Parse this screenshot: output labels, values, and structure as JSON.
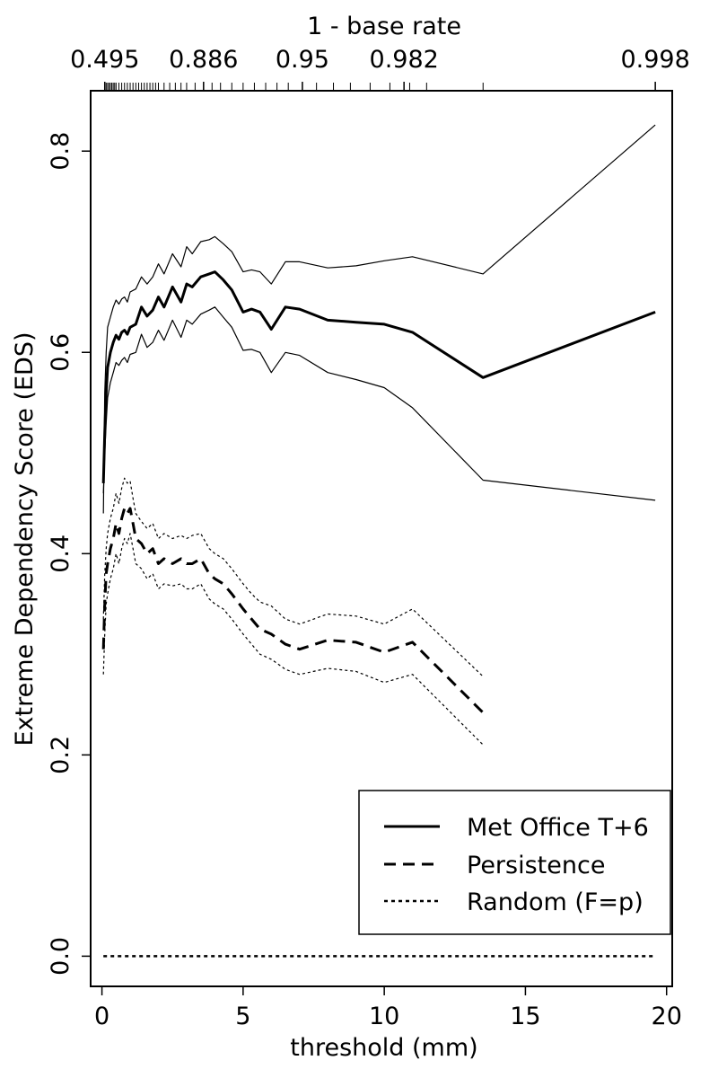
{
  "chart_data": {
    "type": "line",
    "xlabel": "threshold (mm)",
    "ylabel": "Extreme Dependency Score (EDS)",
    "top_axis_label": "1 - base rate",
    "xlim": [
      -0.4,
      20.2
    ],
    "ylim": [
      -0.03,
      0.86
    ],
    "x_ticks": [
      0,
      5,
      10,
      15,
      20
    ],
    "x_tick_labels": [
      "0",
      "5",
      "10",
      "15",
      "20"
    ],
    "y_ticks": [
      0.0,
      0.2,
      0.4,
      0.6,
      0.8
    ],
    "y_tick_labels": [
      "0.0",
      "0.2",
      "0.4",
      "0.6",
      "0.8"
    ],
    "top_ticks": [
      {
        "x": 0.1,
        "label": "0.495"
      },
      {
        "x": 3.6,
        "label": "0.886"
      },
      {
        "x": 7.1,
        "label": "0.95"
      },
      {
        "x": 10.7,
        "label": "0.982"
      },
      {
        "x": 19.6,
        "label": "0.998"
      }
    ],
    "top_minor_ticks": [
      0.1,
      0.15,
      0.2,
      0.25,
      0.3,
      0.35,
      0.4,
      0.45,
      0.5,
      0.6,
      0.7,
      0.8,
      0.9,
      1.0,
      1.1,
      1.2,
      1.3,
      1.4,
      1.5,
      1.6,
      1.7,
      1.8,
      1.9,
      2.0,
      2.2,
      2.4,
      2.6,
      2.8,
      3.0,
      3.3,
      3.6,
      3.9,
      4.2,
      4.6,
      5.0,
      5.4,
      5.8,
      6.2,
      6.6,
      7.1,
      7.6,
      8.2,
      8.8,
      9.5,
      10.2,
      10.9,
      11.5,
      13.5,
      19.6
    ],
    "series": [
      {
        "name": "Met Office T+6",
        "style": "solid",
        "x": [
          0.05,
          0.1,
          0.15,
          0.2,
          0.3,
          0.4,
          0.5,
          0.6,
          0.7,
          0.8,
          0.9,
          1.0,
          1.2,
          1.4,
          1.6,
          1.8,
          2.0,
          2.2,
          2.5,
          2.8,
          3.0,
          3.2,
          3.5,
          3.8,
          4.0,
          4.3,
          4.6,
          5.0,
          5.3,
          5.6,
          6.0,
          6.5,
          7.0,
          8.0,
          9.0,
          10.0,
          11.0,
          13.5,
          19.6
        ],
        "y": [
          0.47,
          0.52,
          0.56,
          0.585,
          0.6,
          0.61,
          0.617,
          0.613,
          0.62,
          0.622,
          0.618,
          0.625,
          0.628,
          0.645,
          0.636,
          0.642,
          0.655,
          0.645,
          0.665,
          0.65,
          0.668,
          0.665,
          0.675,
          0.678,
          0.68,
          0.672,
          0.662,
          0.64,
          0.643,
          0.64,
          0.623,
          0.645,
          0.643,
          0.632,
          0.63,
          0.628,
          0.62,
          0.575,
          0.64
        ]
      },
      {
        "name": "Met Office T+6 upper bound",
        "style": "thin",
        "x": [
          0.05,
          0.1,
          0.15,
          0.2,
          0.3,
          0.4,
          0.5,
          0.6,
          0.7,
          0.8,
          0.9,
          1.0,
          1.2,
          1.4,
          1.6,
          1.8,
          2.0,
          2.2,
          2.5,
          2.8,
          3.0,
          3.2,
          3.5,
          3.8,
          4.0,
          4.3,
          4.6,
          5.0,
          5.3,
          5.6,
          6.0,
          6.5,
          7.0,
          8.0,
          9.0,
          10.0,
          11.0,
          13.5,
          19.6
        ],
        "y": [
          0.44,
          0.56,
          0.6,
          0.625,
          0.635,
          0.645,
          0.652,
          0.648,
          0.653,
          0.655,
          0.65,
          0.66,
          0.663,
          0.675,
          0.668,
          0.675,
          0.688,
          0.678,
          0.698,
          0.685,
          0.705,
          0.698,
          0.71,
          0.712,
          0.715,
          0.708,
          0.7,
          0.68,
          0.682,
          0.68,
          0.668,
          0.69,
          0.69,
          0.684,
          0.686,
          0.691,
          0.695,
          0.678,
          0.826
        ]
      },
      {
        "name": "Met Office T+6 lower bound",
        "style": "thin",
        "x": [
          0.05,
          0.1,
          0.15,
          0.2,
          0.3,
          0.4,
          0.5,
          0.6,
          0.7,
          0.8,
          0.9,
          1.0,
          1.2,
          1.4,
          1.6,
          1.8,
          2.0,
          2.2,
          2.5,
          2.8,
          3.0,
          3.2,
          3.5,
          3.8,
          4.0,
          4.3,
          4.6,
          5.0,
          5.3,
          5.6,
          6.0,
          6.5,
          7.0,
          8.0,
          9.0,
          10.0,
          11.0,
          13.5,
          19.6
        ],
        "y": [
          0.46,
          0.5,
          0.53,
          0.555,
          0.57,
          0.58,
          0.59,
          0.587,
          0.592,
          0.595,
          0.59,
          0.598,
          0.6,
          0.618,
          0.605,
          0.61,
          0.622,
          0.612,
          0.632,
          0.615,
          0.632,
          0.628,
          0.638,
          0.642,
          0.645,
          0.635,
          0.625,
          0.602,
          0.603,
          0.6,
          0.58,
          0.6,
          0.597,
          0.58,
          0.573,
          0.565,
          0.545,
          0.473,
          0.453
        ]
      },
      {
        "name": "Persistence",
        "style": "dashed",
        "x": [
          0.05,
          0.1,
          0.15,
          0.2,
          0.3,
          0.4,
          0.5,
          0.6,
          0.7,
          0.8,
          0.9,
          1.0,
          1.1,
          1.2,
          1.4,
          1.6,
          1.8,
          2.0,
          2.2,
          2.5,
          2.8,
          3.0,
          3.2,
          3.5,
          3.8,
          4.0,
          4.3,
          4.6,
          5.0,
          5.3,
          5.6,
          6.0,
          6.5,
          7.0,
          8.0,
          9.0,
          10.0,
          11.0,
          13.5
        ],
        "y": [
          0.305,
          0.35,
          0.38,
          0.39,
          0.405,
          0.415,
          0.43,
          0.42,
          0.435,
          0.445,
          0.44,
          0.445,
          0.43,
          0.415,
          0.41,
          0.4,
          0.405,
          0.39,
          0.395,
          0.39,
          0.395,
          0.39,
          0.39,
          0.395,
          0.38,
          0.375,
          0.37,
          0.36,
          0.345,
          0.335,
          0.325,
          0.32,
          0.31,
          0.305,
          0.314,
          0.312,
          0.302,
          0.312,
          0.242
        ]
      },
      {
        "name": "Persistence upper bound",
        "style": "dotted-thin",
        "x": [
          0.05,
          0.1,
          0.15,
          0.2,
          0.3,
          0.4,
          0.5,
          0.6,
          0.7,
          0.8,
          0.9,
          1.0,
          1.1,
          1.2,
          1.4,
          1.6,
          1.8,
          2.0,
          2.2,
          2.5,
          2.8,
          3.0,
          3.2,
          3.5,
          3.8,
          4.0,
          4.3,
          4.6,
          5.0,
          5.3,
          5.6,
          6.0,
          6.5,
          7.0,
          8.0,
          9.0,
          10.0,
          11.0,
          13.5
        ],
        "y": [
          0.335,
          0.38,
          0.405,
          0.42,
          0.435,
          0.445,
          0.46,
          0.45,
          0.465,
          0.475,
          0.47,
          0.472,
          0.455,
          0.44,
          0.432,
          0.425,
          0.43,
          0.415,
          0.42,
          0.415,
          0.418,
          0.415,
          0.418,
          0.42,
          0.405,
          0.4,
          0.395,
          0.385,
          0.37,
          0.36,
          0.352,
          0.348,
          0.335,
          0.33,
          0.34,
          0.338,
          0.33,
          0.345,
          0.278
        ]
      },
      {
        "name": "Persistence lower bound",
        "style": "dotted-thin",
        "x": [
          0.05,
          0.1,
          0.15,
          0.2,
          0.3,
          0.4,
          0.5,
          0.6,
          0.7,
          0.8,
          0.9,
          1.0,
          1.1,
          1.2,
          1.4,
          1.6,
          1.8,
          2.0,
          2.2,
          2.5,
          2.8,
          3.0,
          3.2,
          3.5,
          3.8,
          4.0,
          4.3,
          4.6,
          5.0,
          5.3,
          5.6,
          6.0,
          6.5,
          7.0,
          8.0,
          9.0,
          10.0,
          11.0,
          13.5
        ],
        "y": [
          0.28,
          0.32,
          0.35,
          0.36,
          0.375,
          0.385,
          0.4,
          0.39,
          0.405,
          0.415,
          0.41,
          0.42,
          0.405,
          0.39,
          0.385,
          0.375,
          0.38,
          0.365,
          0.37,
          0.368,
          0.37,
          0.365,
          0.365,
          0.37,
          0.355,
          0.35,
          0.345,
          0.335,
          0.32,
          0.31,
          0.3,
          0.295,
          0.285,
          0.28,
          0.286,
          0.283,
          0.272,
          0.28,
          0.21
        ]
      },
      {
        "name": "Random (F=p)",
        "style": "dotted",
        "x": [
          0.05,
          19.6
        ],
        "y": [
          0.0,
          0.0
        ]
      }
    ],
    "legend": {
      "position": "bottom-right",
      "entries": [
        {
          "label": "Met Office T+6",
          "style": "solid"
        },
        {
          "label": "Persistence",
          "style": "dashed"
        },
        {
          "label": "Random (F=p)",
          "style": "dotted"
        }
      ]
    }
  }
}
